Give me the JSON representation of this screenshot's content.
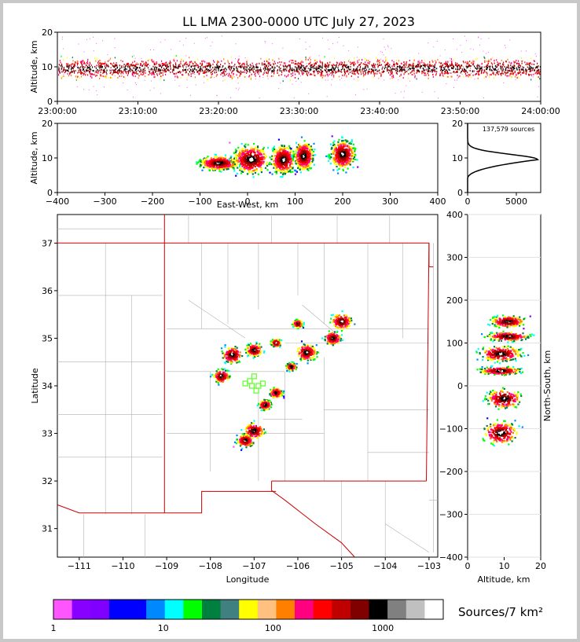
{
  "chart_data": {
    "title": "LL LMA 2300-0000 UTC July 27, 2023",
    "source_count": "137,579 sources",
    "panels": {
      "time_height": {
        "type": "heatmap",
        "ylabel": "Altitude, km",
        "ylim": [
          0,
          20
        ],
        "yticks": [
          "0",
          "10",
          "20"
        ],
        "xticks": [
          "23:00:00",
          "23:10:00",
          "23:20:00",
          "23:30:00",
          "23:40:00",
          "23:50:00",
          "24:00:00"
        ],
        "band_altitude_km": [
          6,
          13
        ]
      },
      "east_west_height": {
        "type": "heatmap",
        "xlabel": "East-West, km",
        "ylabel": "Altitude, km",
        "xlim": [
          -400,
          400
        ],
        "ylim": [
          0,
          20
        ],
        "xticks": [
          "−400",
          "−300",
          "−200",
          "−100",
          "0",
          "100",
          "200",
          "300",
          "400"
        ],
        "yticks": [
          "0",
          "10",
          "20"
        ],
        "clusters": [
          {
            "x": -60,
            "y": 8.5,
            "rx": 40,
            "ry": 2
          },
          {
            "x": 8,
            "y": 9.5,
            "rx": 38,
            "ry": 4
          },
          {
            "x": 75,
            "y": 9.5,
            "rx": 25,
            "ry": 4
          },
          {
            "x": 118,
            "y": 10.5,
            "rx": 20,
            "ry": 4
          },
          {
            "x": 200,
            "y": 11,
            "rx": 25,
            "ry": 4
          }
        ]
      },
      "altitude_histogram": {
        "type": "line",
        "xticks": [
          "0",
          "5000"
        ],
        "yticks": [
          "0",
          "10",
          "20"
        ],
        "xlim": [
          0,
          7500
        ],
        "ylim": [
          0,
          20
        ],
        "peak": {
          "x": 7200,
          "y": 9.5
        }
      },
      "plan_view": {
        "type": "heatmap",
        "xlabel": "Longitude",
        "ylabel": "Latitude",
        "xlim": [
          -111.5,
          -102.8
        ],
        "ylim": [
          30.4,
          37.6
        ],
        "xticks": [
          "−111",
          "−110",
          "−109",
          "−108",
          "−107",
          "−106",
          "−105",
          "−104",
          "−103"
        ],
        "yticks": [
          "31",
          "32",
          "33",
          "34",
          "35",
          "36",
          "37"
        ],
        "stations": [
          [
            -107.0,
            34.2
          ],
          [
            -107.1,
            34.1
          ],
          [
            -106.9,
            34.0
          ],
          [
            -106.8,
            34.05
          ],
          [
            -107.2,
            34.05
          ],
          [
            -106.95,
            33.9
          ],
          [
            -107.05,
            34.0
          ]
        ],
        "clusters": [
          {
            "lon": -105.0,
            "lat": 35.35,
            "r": 0.25
          },
          {
            "lon": -105.2,
            "lat": 35.0,
            "r": 0.2
          },
          {
            "lon": -106.0,
            "lat": 35.3,
            "r": 0.12
          },
          {
            "lon": -105.8,
            "lat": 34.7,
            "r": 0.25
          },
          {
            "lon": -106.15,
            "lat": 34.4,
            "r": 0.12
          },
          {
            "lon": -106.5,
            "lat": 34.9,
            "r": 0.12
          },
          {
            "lon": -107.0,
            "lat": 34.75,
            "r": 0.2
          },
          {
            "lon": -107.5,
            "lat": 34.65,
            "r": 0.25
          },
          {
            "lon": -107.75,
            "lat": 34.2,
            "r": 0.2
          },
          {
            "lon": -106.5,
            "lat": 33.85,
            "r": 0.15
          },
          {
            "lon": -106.75,
            "lat": 33.6,
            "r": 0.15
          },
          {
            "lon": -107.0,
            "lat": 33.05,
            "r": 0.25
          },
          {
            "lon": -107.2,
            "lat": 32.85,
            "r": 0.2
          }
        ]
      },
      "north_south_height": {
        "type": "heatmap",
        "xlabel": "Altitude, km",
        "ylabel": "North-South, km",
        "xlim": [
          0,
          20
        ],
        "ylim": [
          -400,
          400
        ],
        "xticks": [
          "0",
          "10",
          "20"
        ],
        "yticks": [
          "−400",
          "−300",
          "−200",
          "−100",
          "0",
          "100",
          "200",
          "300",
          "400"
        ],
        "clusters": [
          {
            "y": 150,
            "x": 11,
            "rx": 5,
            "ry": 15
          },
          {
            "y": 115,
            "x": 11,
            "rx": 6,
            "ry": 12
          },
          {
            "y": 75,
            "x": 9,
            "rx": 6,
            "ry": 20
          },
          {
            "y": 35,
            "x": 9,
            "rx": 6,
            "ry": 10
          },
          {
            "y": -30,
            "x": 10,
            "rx": 5,
            "ry": 25
          },
          {
            "y": -110,
            "x": 9,
            "rx": 5,
            "ry": 30
          }
        ]
      }
    },
    "colorbar": {
      "label": "Sources/7 km²",
      "ticks": [
        "1",
        "10",
        "100",
        "1000"
      ],
      "colors": [
        "#ff55ff",
        "#8800ff",
        "#8000ff",
        "#0000ff",
        "#0000ff",
        "#0088ff",
        "#00ffff",
        "#00ff00",
        "#008040",
        "#408080",
        "#ffff00",
        "#ffc080",
        "#ff8000",
        "#ff0080",
        "#ff0000",
        "#c00000",
        "#800000",
        "#000000",
        "#808080",
        "#c0c0c0",
        "#ffffff"
      ]
    }
  }
}
